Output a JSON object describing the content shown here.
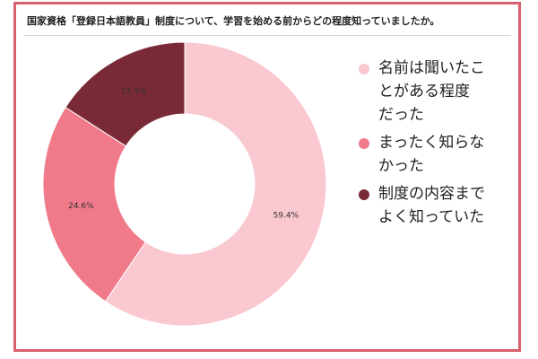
{
  "chart_data": {
    "type": "pie",
    "donut": true,
    "title": "国家資格「登録日本語教員」制度について、学習を始める前からどの程度知っていましたか。",
    "slices": [
      {
        "label": "名前は聞いたことがある程度だった",
        "value": 59.4,
        "display": "59.4%",
        "color": "#f9c8d0"
      },
      {
        "label": "まったく知らなかった",
        "value": 24.6,
        "display": "24.6%",
        "color": "#f07a89"
      },
      {
        "label": "制度の内容までよく知っていた",
        "value": 15.9,
        "display": "15.9%",
        "color": "#7a2a36"
      }
    ],
    "legend_placement": "right"
  },
  "legend": [
    {
      "lines": [
        "名前は聞いたこ",
        "とがある程度",
        "だった"
      ],
      "color": "#f9c8d0"
    },
    {
      "lines": [
        "まったく知らな",
        "かった"
      ],
      "color": "#f07a89"
    },
    {
      "lines": [
        "制度の内容まで",
        "よく知っていた"
      ],
      "color": "#7a2a36"
    }
  ],
  "frame_color": "#d9606f"
}
